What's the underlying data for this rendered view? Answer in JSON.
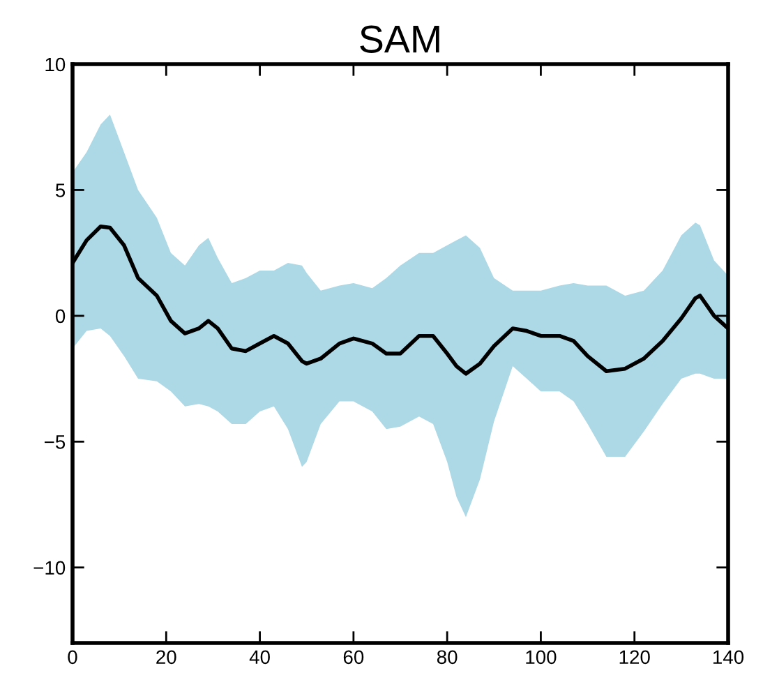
{
  "chart_data": {
    "type": "line",
    "title": "SAM",
    "xlim": [
      0,
      140
    ],
    "xticks": [
      0,
      20,
      40,
      60,
      80,
      100,
      120,
      140
    ],
    "ylim": [
      -13,
      10
    ],
    "yticks": [
      {
        "value": -10,
        "label": "−10"
      },
      {
        "value": -5,
        "label": "−5"
      },
      0,
      5,
      10
    ],
    "grid": false,
    "series": [
      {
        "color": "#000000",
        "x": [
          0,
          3,
          6,
          8,
          11,
          14,
          18,
          21,
          24,
          27,
          29,
          31,
          34,
          37,
          40,
          43,
          46,
          49,
          50,
          53,
          57,
          60,
          64,
          67,
          70,
          74,
          77,
          80,
          82,
          84,
          87,
          90,
          94,
          97,
          100,
          104,
          107,
          110,
          114,
          118,
          122,
          126,
          130,
          133,
          134,
          137,
          140
        ],
        "values": [
          2.1,
          3.0,
          3.55,
          3.5,
          2.8,
          1.5,
          0.8,
          -0.2,
          -0.7,
          -0.5,
          -0.2,
          -0.5,
          -1.3,
          -1.4,
          -1.1,
          -0.8,
          -1.1,
          -1.8,
          -1.9,
          -1.7,
          -1.1,
          -0.9,
          -1.1,
          -1.5,
          -1.5,
          -0.8,
          -0.8,
          -1.5,
          -2.0,
          -2.3,
          -1.9,
          -1.2,
          -0.5,
          -0.6,
          -0.8,
          -0.8,
          -1.0,
          -1.6,
          -2.2,
          -2.1,
          -1.7,
          -1.0,
          -0.1,
          0.7,
          0.8,
          0.0,
          -0.5
        ],
        "upper": [
          5.7,
          6.5,
          7.6,
          8.0,
          6.5,
          5.0,
          3.9,
          2.5,
          2.0,
          2.8,
          3.1,
          2.3,
          1.3,
          1.5,
          1.8,
          1.8,
          2.1,
          2.0,
          1.7,
          1.0,
          1.2,
          1.3,
          1.1,
          1.5,
          2.0,
          2.5,
          2.5,
          2.8,
          3.0,
          3.2,
          2.7,
          1.5,
          1.0,
          1.0,
          1.0,
          1.2,
          1.3,
          1.2,
          1.2,
          0.8,
          1.0,
          1.8,
          3.2,
          3.7,
          3.6,
          2.2,
          1.6
        ],
        "lower": [
          -1.3,
          -0.6,
          -0.5,
          -0.8,
          -1.6,
          -2.5,
          -2.6,
          -3.0,
          -3.6,
          -3.5,
          -3.6,
          -3.8,
          -4.3,
          -4.3,
          -3.8,
          -3.6,
          -4.5,
          -6.0,
          -5.8,
          -4.3,
          -3.4,
          -3.4,
          -3.8,
          -4.5,
          -4.4,
          -4.0,
          -4.3,
          -5.8,
          -7.2,
          -8.0,
          -6.5,
          -4.2,
          -2.0,
          -2.5,
          -3.0,
          -3.0,
          -3.4,
          -4.3,
          -5.6,
          -5.6,
          -4.6,
          -3.5,
          -2.5,
          -2.3,
          -2.3,
          -2.5,
          -2.5
        ]
      }
    ]
  }
}
